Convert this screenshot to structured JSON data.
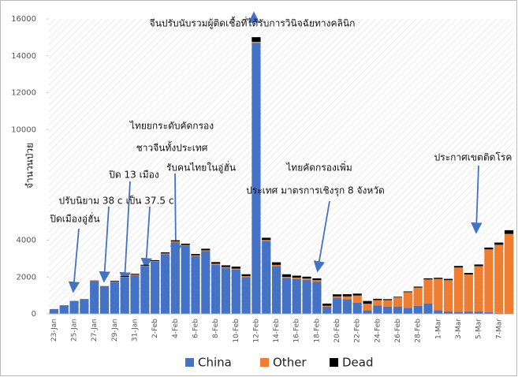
{
  "chart_data": {
    "type": "stacked_bar",
    "y_label": "จำนวนป่วย",
    "categories": [
      "23-Jan",
      null,
      "25-Jan",
      null,
      "27-Jan",
      null,
      "29-Jan",
      null,
      "31-Jan",
      null,
      "2-Feb",
      null,
      "4-Feb",
      null,
      "6-Feb",
      null,
      "8-Feb",
      null,
      "10-Feb",
      null,
      "12-Feb",
      null,
      "14-Feb",
      null,
      "16-Feb",
      null,
      "18-Feb",
      null,
      "20-Feb",
      null,
      "22-Feb",
      null,
      "24-Feb",
      null,
      "26-Feb",
      null,
      "28-Feb",
      null,
      "1-Mar",
      null,
      "3-Mar",
      null,
      "5-Mar",
      null,
      "7-Mar",
      null
    ],
    "series": [
      {
        "name": "China",
        "color": "#4472c4",
        "values": [
          250,
          450,
          690,
          770,
          1770,
          1460,
          1740,
          1980,
          2100,
          2590,
          2830,
          3240,
          3890,
          3700,
          3140,
          3400,
          2660,
          2480,
          2400,
          2000,
          14700,
          3950,
          2600,
          1950,
          1900,
          1850,
          1750,
          390,
          890,
          800,
          600,
          200,
          450,
          400,
          400,
          330,
          430,
          570,
          200,
          130,
          120,
          140,
          140,
          100,
          50,
          40
        ]
      },
      {
        "name": "Other",
        "color": "#ed7d31",
        "values": [
          0,
          5,
          5,
          10,
          15,
          20,
          25,
          30,
          30,
          30,
          30,
          40,
          40,
          40,
          40,
          50,
          60,
          60,
          60,
          50,
          60,
          60,
          60,
          60,
          70,
          70,
          80,
          50,
          60,
          150,
          400,
          350,
          300,
          350,
          500,
          850,
          1000,
          1300,
          1700,
          1700,
          2400,
          2000,
          2450,
          3400,
          3700,
          4300
        ]
      },
      {
        "name": "Dead",
        "color": "#000000",
        "values": [
          10,
          10,
          10,
          20,
          25,
          25,
          35,
          40,
          45,
          45,
          55,
          60,
          65,
          70,
          70,
          85,
          90,
          95,
          105,
          100,
          250,
          120,
          140,
          140,
          105,
          100,
          100,
          120,
          110,
          120,
          100,
          150,
          70,
          50,
          30,
          40,
          50,
          60,
          60,
          70,
          80,
          80,
          90,
          100,
          120,
          200
        ]
      }
    ],
    "ylim": [
      0,
      16000
    ],
    "yticks": [
      0,
      2000,
      4000,
      10000,
      12000,
      14000,
      16000
    ],
    "legend": "bottom",
    "annotations": [
      "จีนปรับนับรวมผู้ติดเชื้อที่ได้รับการวินิจฉัยทางคลินิก",
      "ไทยยกระดับคัดกรอง",
      "ชาวจีนทั้งประเทศ",
      "รับคนไทยในอู่ฮั่น",
      "ปิด 13 เมือง",
      "ปรับนิยาม 38 c",
      "เป็น 37.5 c",
      "ปิดเมืองอู่ฮั่น",
      "ไทยคัดกรองเพิ่ม",
      "ประเทศ มาตรการเชิงรุก 8 จังหวัด",
      "ประกาศเขตติดโรค"
    ]
  }
}
